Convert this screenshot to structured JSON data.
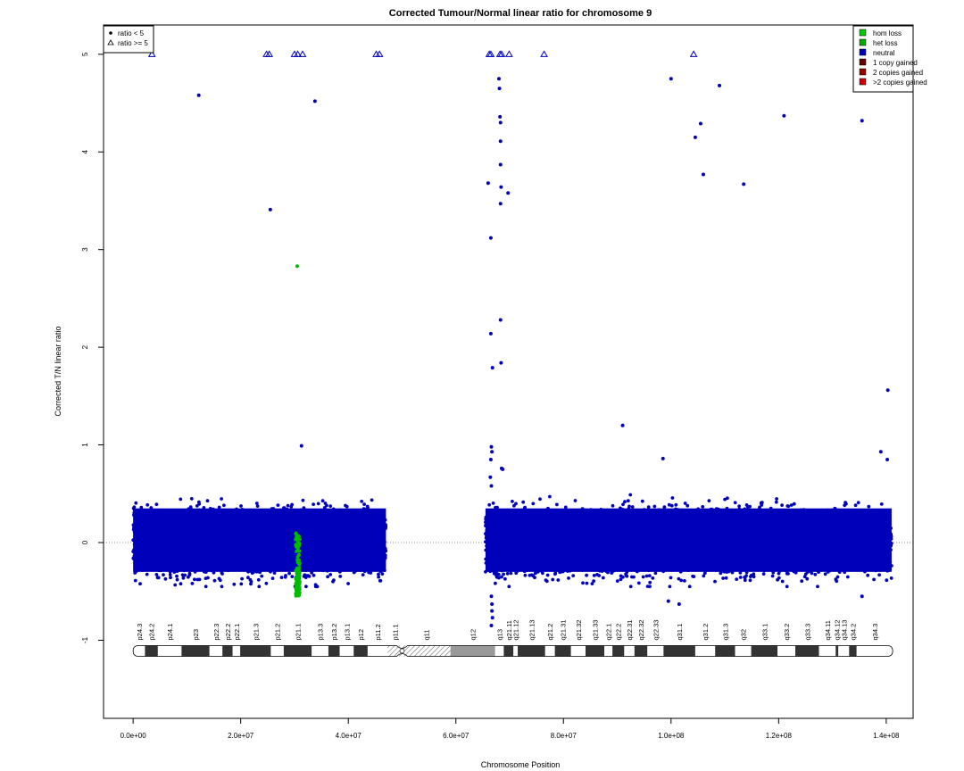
{
  "chart_data": {
    "type": "scatter",
    "title": "Corrected Tumour/Normal linear ratio for chromosome  9",
    "xlabel": "Chromosome Position",
    "ylabel": "Corrected T/N linear ratio",
    "xlim": [
      -5500000,
      145000000
    ],
    "ylim": [
      -1.8,
      5.3
    ],
    "x_ticks": [
      0,
      20000000,
      40000000,
      60000000,
      80000000,
      100000000,
      120000000,
      140000000
    ],
    "x_tick_labels": [
      "0.0e+00",
      "2.0e+07",
      "4.0e+07",
      "6.0e+07",
      "8.0e+07",
      "1.0e+08",
      "1.2e+08",
      "1.4e+08"
    ],
    "y_ticks": [
      -1,
      0,
      1,
      2,
      3,
      4,
      5
    ],
    "y_tick_labels": [
      "-1",
      "0",
      "1",
      "2",
      "3",
      "4",
      "5"
    ],
    "reference_line_y": 0,
    "shape_legend": {
      "placement": "top-left",
      "items": [
        {
          "symbol": "dot",
          "label": "ratio < 5"
        },
        {
          "symbol": "triangle",
          "label": "ratio >= 5"
        }
      ]
    },
    "legend": {
      "placement": "top-right",
      "items": [
        {
          "label": "hom loss",
          "color": "#00cc00"
        },
        {
          "label": "het loss",
          "color": "#00aa00"
        },
        {
          "label": "neutral",
          "color": "#0000bb"
        },
        {
          "label": "1 copy gained",
          "color": "#660000"
        },
        {
          "label": "2 copies gained",
          "color": "#990000"
        },
        {
          "label": ">2 copies gained",
          "color": "#cc0000"
        }
      ]
    },
    "colors": {
      "neutral": "#0000bb",
      "het_loss": "#00bb00",
      "hom_loss": "#00cc00",
      "reference_line": "#888888"
    },
    "dense_regions": [
      {
        "name": "p-arm",
        "x_start": 0,
        "x_end": 47000000,
        "y_min": -0.45,
        "y_max": 0.62,
        "color": "#0000bb"
      },
      {
        "name": "q-arm",
        "x_start": 65500000,
        "x_end": 141000000,
        "y_min": -0.45,
        "y_max": 0.62,
        "color": "#0000bb"
      }
    ],
    "het_loss_cluster": {
      "x_start": 30200000,
      "x_end": 31000000,
      "y_min": -0.55,
      "y_max": 0.1,
      "color": "#00bb00"
    },
    "series": [
      {
        "name": "neutral",
        "color": "#0000bb",
        "points": [
          [
            12200000,
            4.58
          ],
          [
            25500000,
            3.41
          ],
          [
            33800000,
            4.52
          ],
          [
            31300000,
            0.99
          ],
          [
            66000000,
            3.68
          ],
          [
            66500000,
            3.12
          ],
          [
            66500000,
            2.14
          ],
          [
            66800000,
            1.79
          ],
          [
            68000000,
            4.75
          ],
          [
            68100000,
            4.65
          ],
          [
            68200000,
            4.36
          ],
          [
            68300000,
            4.3
          ],
          [
            68300000,
            4.11
          ],
          [
            68300000,
            3.87
          ],
          [
            68400000,
            3.64
          ],
          [
            68300000,
            3.47
          ],
          [
            69700000,
            3.58
          ],
          [
            68300000,
            2.28
          ],
          [
            68400000,
            1.84
          ],
          [
            91000000,
            1.2
          ],
          [
            100000000,
            4.75
          ],
          [
            104500000,
            4.15
          ],
          [
            105500000,
            4.29
          ],
          [
            106000000,
            3.77
          ],
          [
            109000000,
            4.68
          ],
          [
            113500000,
            3.67
          ],
          [
            121000000,
            4.37
          ],
          [
            135500000,
            4.32
          ],
          [
            140300000,
            1.56
          ],
          [
            139000000,
            0.93
          ],
          [
            140200000,
            0.85
          ],
          [
            98500000,
            0.86
          ],
          [
            66600000,
            0.98
          ],
          [
            66700000,
            0.93
          ],
          [
            66500000,
            0.85
          ],
          [
            66400000,
            0.67
          ],
          [
            66600000,
            0.58
          ],
          [
            68500000,
            0.76
          ],
          [
            68700000,
            0.75
          ],
          [
            66600000,
            -0.55
          ],
          [
            66700000,
            -0.63
          ],
          [
            66700000,
            -0.7
          ],
          [
            66800000,
            -0.77
          ],
          [
            66600000,
            -0.85
          ],
          [
            101500000,
            -0.63
          ],
          [
            99500000,
            -0.6
          ],
          [
            135500000,
            -0.55
          ]
        ]
      },
      {
        "name": "het loss",
        "color": "#00bb00",
        "points": [
          [
            30500000,
            2.83
          ]
        ]
      }
    ],
    "clipped_points_ratio_ge_5": [
      3500000,
      24800000,
      25300000,
      30000000,
      30600000,
      31500000,
      45200000,
      45800000,
      66200000,
      66500000,
      68200000,
      68500000,
      69900000,
      76400000,
      104200000
    ],
    "ideogram": {
      "y": -1.11,
      "centromere": 50000000,
      "bands": [
        {
          "name": "p24.3",
          "start": 0,
          "end": 2200000,
          "stain": "white"
        },
        {
          "name": "p24.2",
          "start": 2200000,
          "end": 4600000,
          "stain": "dark"
        },
        {
          "name": "p24.1",
          "start": 4600000,
          "end": 9000000,
          "stain": "white"
        },
        {
          "name": "p23",
          "start": 9000000,
          "end": 14200000,
          "stain": "dark"
        },
        {
          "name": "p22.3",
          "start": 14200000,
          "end": 16600000,
          "stain": "white"
        },
        {
          "name": "p22.2",
          "start": 16600000,
          "end": 18500000,
          "stain": "dark"
        },
        {
          "name": "p22.1",
          "start": 18500000,
          "end": 19900000,
          "stain": "white"
        },
        {
          "name": "p21.3",
          "start": 19900000,
          "end": 25600000,
          "stain": "dark"
        },
        {
          "name": "p21.2",
          "start": 25600000,
          "end": 28000000,
          "stain": "white"
        },
        {
          "name": "p21.1",
          "start": 28000000,
          "end": 33200000,
          "stain": "dark"
        },
        {
          "name": "p13.3",
          "start": 33200000,
          "end": 36300000,
          "stain": "white"
        },
        {
          "name": "p13.2",
          "start": 36300000,
          "end": 38400000,
          "stain": "dark"
        },
        {
          "name": "p13.1",
          "start": 38400000,
          "end": 41000000,
          "stain": "white"
        },
        {
          "name": "p12",
          "start": 41000000,
          "end": 43600000,
          "stain": "dark"
        },
        {
          "name": "p11.2",
          "start": 43600000,
          "end": 47300000,
          "stain": "white"
        },
        {
          "name": "p11.1",
          "start": 47300000,
          "end": 50000000,
          "stain": "hatch"
        },
        {
          "name": "q11",
          "start": 50000000,
          "end": 59000000,
          "stain": "hatch"
        },
        {
          "name": "q12",
          "start": 59000000,
          "end": 67300000,
          "stain": "gray"
        },
        {
          "name": "q13",
          "start": 67300000,
          "end": 68900000,
          "stain": "white"
        },
        {
          "name": "q21.11",
          "start": 68900000,
          "end": 70700000,
          "stain": "dark"
        },
        {
          "name": "q21.12",
          "start": 70700000,
          "end": 71500000,
          "stain": "white"
        },
        {
          "name": "q21.13",
          "start": 71500000,
          "end": 76600000,
          "stain": "dark"
        },
        {
          "name": "q21.2",
          "start": 76600000,
          "end": 78400000,
          "stain": "white"
        },
        {
          "name": "q21.31",
          "start": 78400000,
          "end": 81400000,
          "stain": "dark"
        },
        {
          "name": "q21.32",
          "start": 81400000,
          "end": 84100000,
          "stain": "white"
        },
        {
          "name": "q21.33",
          "start": 84100000,
          "end": 87600000,
          "stain": "dark"
        },
        {
          "name": "q22.1",
          "start": 87600000,
          "end": 89100000,
          "stain": "white"
        },
        {
          "name": "q22.2",
          "start": 89100000,
          "end": 91300000,
          "stain": "dark"
        },
        {
          "name": "q22.31",
          "start": 91300000,
          "end": 93200000,
          "stain": "white"
        },
        {
          "name": "q22.32",
          "start": 93200000,
          "end": 95600000,
          "stain": "dark"
        },
        {
          "name": "q22.33",
          "start": 95600000,
          "end": 98600000,
          "stain": "white"
        },
        {
          "name": "q31.1",
          "start": 98600000,
          "end": 104500000,
          "stain": "dark"
        },
        {
          "name": "q31.2",
          "start": 104500000,
          "end": 108200000,
          "stain": "white"
        },
        {
          "name": "q31.3",
          "start": 108200000,
          "end": 111900000,
          "stain": "dark"
        },
        {
          "name": "q32",
          "start": 111900000,
          "end": 114900000,
          "stain": "white"
        },
        {
          "name": "q33.1",
          "start": 114900000,
          "end": 119800000,
          "stain": "dark"
        },
        {
          "name": "q33.2",
          "start": 119800000,
          "end": 123100000,
          "stain": "white"
        },
        {
          "name": "q33.3",
          "start": 123100000,
          "end": 127500000,
          "stain": "dark"
        },
        {
          "name": "q34.11",
          "start": 127500000,
          "end": 130600000,
          "stain": "white"
        },
        {
          "name": "q34.12",
          "start": 130600000,
          "end": 131100000,
          "stain": "dark"
        },
        {
          "name": "q34.13",
          "start": 131100000,
          "end": 133100000,
          "stain": "white"
        },
        {
          "name": "q34.2",
          "start": 133100000,
          "end": 134500000,
          "stain": "dark"
        },
        {
          "name": "q34.3",
          "start": 134500000,
          "end": 141200000,
          "stain": "white"
        }
      ]
    }
  }
}
